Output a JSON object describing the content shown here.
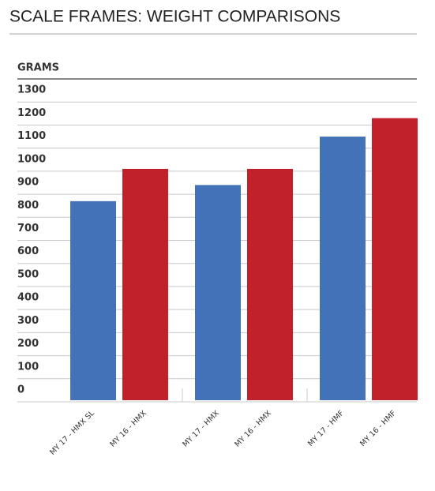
{
  "chart_data": {
    "type": "bar",
    "title": "SCALE FRAMES: WEIGHT COMPARISONS",
    "y_label": "GRAMS",
    "categories": [
      "MY 17 - HMX SL",
      "MY 16 - HMX",
      "MY 17 - HMX",
      "MY 16 - HMX",
      "MY 17 - HMF",
      "MY 16 - HMF"
    ],
    "values": [
      870,
      1010,
      940,
      1010,
      1150,
      1230
    ],
    "colors": [
      "#4472b8",
      "#c0212b",
      "#4472b8",
      "#c0212b",
      "#4472b8",
      "#c0212b"
    ],
    "ylim": [
      0,
      1400
    ],
    "yticks": [
      0,
      100,
      200,
      300,
      400,
      500,
      600,
      700,
      800,
      900,
      1000,
      1100,
      1200,
      1300
    ],
    "grid": true
  }
}
